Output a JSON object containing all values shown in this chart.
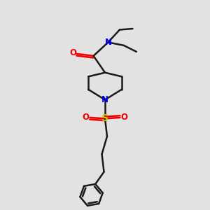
{
  "bg_color": "#e2e2e2",
  "bond_color": "#1a1a1a",
  "N_color": "#0000ee",
  "O_color": "#ee0000",
  "S_color": "#cccc00",
  "bond_width": 1.8,
  "font_size": 8.5,
  "figsize": [
    3.0,
    3.0
  ],
  "dpi": 100,
  "xlim": [
    0,
    10
  ],
  "ylim": [
    0,
    10
  ]
}
